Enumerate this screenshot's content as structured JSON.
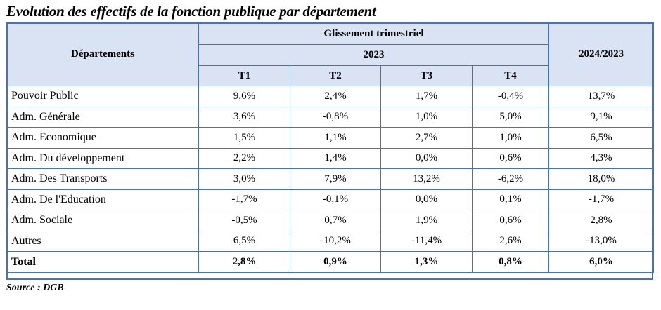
{
  "title": "Evolution des effectifs de la fonction publique par département",
  "table": {
    "header_departments": "Départements",
    "header_group": "Glissement trimestriel",
    "header_year": "2023",
    "header_quarters": [
      "T1",
      "T2",
      "T3",
      "T4"
    ],
    "header_annual": "2024/2023",
    "rows": [
      {
        "dept": "Pouvoir Public",
        "values": [
          "9,6%",
          "2,4%",
          "1,7%",
          "-0,4%",
          "13,7%"
        ]
      },
      {
        "dept": "Adm. Générale",
        "values": [
          "3,6%",
          "-0,8%",
          "1,0%",
          "5,0%",
          "9,1%"
        ]
      },
      {
        "dept": "Adm. Economique",
        "values": [
          "1,5%",
          "1,1%",
          "2,7%",
          "1,0%",
          "6,5%"
        ]
      },
      {
        "dept": "Adm. Du développement",
        "values": [
          "2,2%",
          "1,4%",
          "0,0%",
          "0,6%",
          "4,3%"
        ]
      },
      {
        "dept": "Adm. Des Transports",
        "values": [
          "3,0%",
          "7,9%",
          "13,2%",
          "-6,2%",
          "18,0%"
        ]
      },
      {
        "dept": "Adm. De l'Education",
        "values": [
          "-1,7%",
          "-0,1%",
          "0,0%",
          "0,1%",
          "-1,7%"
        ]
      },
      {
        "dept": "Adm. Sociale",
        "values": [
          "-0,5%",
          "0,7%",
          "1,9%",
          "0,6%",
          "2,8%"
        ]
      },
      {
        "dept": "Autres",
        "values": [
          "6,5%",
          "-10,2%",
          "-11,4%",
          "2,6%",
          "-13,0%"
        ]
      }
    ],
    "total": {
      "dept": "Total",
      "values": [
        "2,8%",
        "0,9%",
        "1,3%",
        "0,8%",
        "6,0%"
      ]
    }
  },
  "source": "Source : DGB",
  "colors": {
    "border": "#4a72b2",
    "header_bg": "#dae3f3"
  }
}
